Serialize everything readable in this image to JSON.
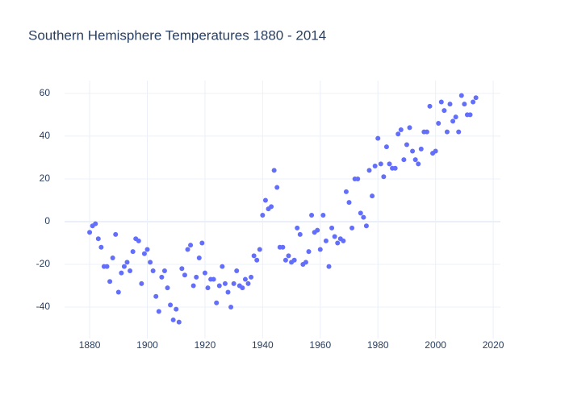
{
  "chart_data": {
    "type": "scatter",
    "title": "Southern Hemisphere Temperatures 1880 - 2014",
    "x": [
      1880,
      1881,
      1882,
      1883,
      1884,
      1885,
      1886,
      1887,
      1888,
      1889,
      1890,
      1891,
      1892,
      1893,
      1894,
      1895,
      1896,
      1897,
      1898,
      1899,
      1900,
      1901,
      1902,
      1903,
      1904,
      1905,
      1906,
      1907,
      1908,
      1909,
      1910,
      1911,
      1912,
      1913,
      1914,
      1915,
      1916,
      1917,
      1918,
      1919,
      1920,
      1921,
      1922,
      1923,
      1924,
      1925,
      1926,
      1927,
      1928,
      1929,
      1930,
      1931,
      1932,
      1933,
      1934,
      1935,
      1936,
      1937,
      1938,
      1939,
      1940,
      1941,
      1942,
      1943,
      1944,
      1945,
      1946,
      1947,
      1948,
      1949,
      1950,
      1951,
      1952,
      1953,
      1954,
      1955,
      1956,
      1957,
      1958,
      1959,
      1960,
      1961,
      1962,
      1963,
      1964,
      1965,
      1966,
      1967,
      1968,
      1969,
      1970,
      1971,
      1972,
      1973,
      1974,
      1975,
      1976,
      1977,
      1978,
      1979,
      1980,
      1981,
      1982,
      1983,
      1984,
      1985,
      1986,
      1987,
      1988,
      1989,
      1990,
      1991,
      1992,
      1993,
      1994,
      1995,
      1996,
      1997,
      1998,
      1999,
      2000,
      2001,
      2002,
      2003,
      2004,
      2005,
      2006,
      2007,
      2008,
      2009,
      2010,
      2011,
      2012,
      2013,
      2014
    ],
    "values": [
      -5,
      -2,
      -1,
      -8,
      -12,
      -21,
      -21,
      -28,
      -17,
      -6,
      -33,
      -24,
      -21,
      -19,
      -23,
      -14,
      -8,
      -9,
      -29,
      -15,
      -13,
      -19,
      -23,
      -35,
      -42,
      -26,
      -23,
      -31,
      -39,
      -46,
      -41,
      -47,
      -22,
      -25,
      -13,
      -11,
      -30,
      -26,
      -17,
      -10,
      -24,
      -31,
      -27,
      -27,
      -38,
      -30,
      -21,
      -29,
      -33,
      -40,
      -29,
      -23,
      -30,
      -31,
      -27,
      -29,
      -26,
      -16,
      -18,
      -13,
      3,
      10,
      6,
      7,
      24,
      16,
      -12,
      -12,
      -18,
      -16,
      -19,
      -18,
      -3,
      -6,
      -20,
      -19,
      -14,
      3,
      -5,
      -4,
      -13,
      3,
      -9,
      -21,
      -3,
      -7,
      -10,
      -8,
      -9,
      14,
      9,
      -3,
      20,
      20,
      4,
      2,
      -2,
      24,
      12,
      26,
      39,
      27,
      21,
      35,
      27,
      25,
      25,
      41,
      43,
      29,
      36,
      44,
      33,
      29,
      27,
      34,
      42,
      42,
      54,
      32,
      33,
      46,
      56,
      52,
      42,
      55,
      47,
      49,
      42,
      59,
      55,
      50,
      50,
      56,
      58
    ],
    "color": "#636efa",
    "xlim": [
      1871.3,
      2022.5
    ],
    "xticks": [
      1880,
      1900,
      1920,
      1940,
      1960,
      1980,
      2000,
      2020
    ],
    "ylim": [
      -54.7,
      66
    ],
    "yticks": [
      -40,
      -20,
      0,
      20,
      40,
      60
    ],
    "grid": true
  }
}
